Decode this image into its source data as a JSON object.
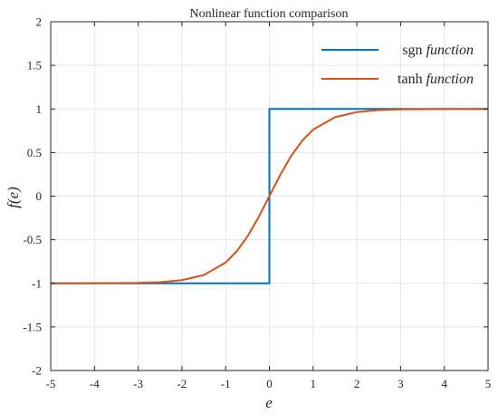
{
  "chart_data": {
    "type": "line",
    "title": "Nonlinear function comparison",
    "xlabel": "e",
    "ylabel": "f(e)",
    "xlim": [
      -5,
      5
    ],
    "ylim": [
      -2,
      2
    ],
    "x_ticks": [
      "-5",
      "-4",
      "-3",
      "-2",
      "-1",
      "0",
      "1",
      "2",
      "3",
      "4",
      "5"
    ],
    "y_ticks": [
      "2",
      "1.5",
      "1",
      "0.5",
      "0",
      "-0.5",
      "-1",
      "-1.5",
      "-2"
    ],
    "grid": true,
    "legend_position": "top-right",
    "series": [
      {
        "name_plain": "sgn",
        "name_italic": "function",
        "color": "#0072BD",
        "x": [
          -5,
          0,
          0,
          5
        ],
        "y": [
          -1,
          -1,
          1,
          1
        ]
      },
      {
        "name_plain": "tanh",
        "name_italic": "function",
        "color": "#D95319",
        "x": [
          -5,
          -4,
          -3,
          -2.5,
          -2,
          -1.5,
          -1,
          -0.75,
          -0.5,
          -0.25,
          0,
          0.25,
          0.5,
          0.75,
          1,
          1.5,
          2,
          2.5,
          3,
          4,
          5
        ],
        "y": [
          -1,
          -0.999,
          -0.995,
          -0.987,
          -0.964,
          -0.905,
          -0.762,
          -0.635,
          -0.462,
          -0.245,
          0,
          0.245,
          0.462,
          0.635,
          0.762,
          0.905,
          0.964,
          0.987,
          0.995,
          0.999,
          1
        ]
      }
    ]
  }
}
